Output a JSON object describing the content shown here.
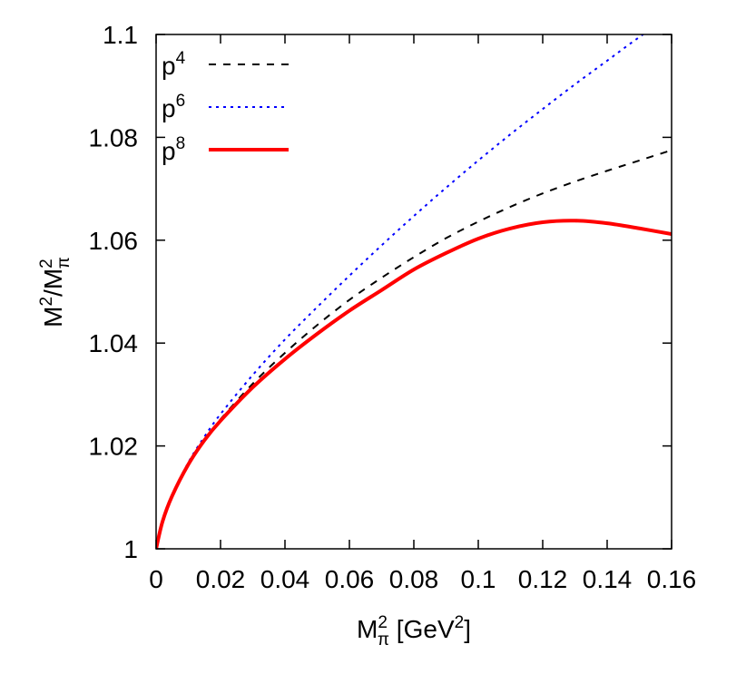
{
  "chart_data": {
    "type": "line",
    "xlabel": {
      "base": "M",
      "sub": "π",
      "sup": "2",
      "suffix_open": " [GeV",
      "suffix_sup": "2",
      "suffix_close": "]"
    },
    "ylabel": {
      "base1": "M",
      "sup1": "2",
      "slash": "/M",
      "sub2": "π",
      "sup2": "2"
    },
    "xlim": [
      0,
      0.16
    ],
    "ylim": [
      1,
      1.1
    ],
    "x_ticks": [
      0,
      0.02,
      0.04,
      0.06,
      0.08,
      0.1,
      0.12,
      0.14,
      0.16
    ],
    "x_tick_labels": [
      "0",
      "0.02",
      "0.04",
      "0.06",
      "0.08",
      "0.1",
      "0.12",
      "0.14",
      "0.16"
    ],
    "y_ticks": [
      1,
      1.02,
      1.04,
      1.06,
      1.08,
      1.1
    ],
    "y_tick_labels": [
      "1",
      "1.02",
      "1.04",
      "1.06",
      "1.08",
      "1.1"
    ],
    "grid": false,
    "legend_position": "top-left",
    "series": [
      {
        "name": "p4",
        "name_base": "p",
        "name_sup": "4",
        "color": "#000000",
        "style": "dashed",
        "x": [
          0,
          0.002,
          0.005,
          0.01,
          0.015,
          0.02,
          0.03,
          0.04,
          0.05,
          0.06,
          0.07,
          0.08,
          0.09,
          0.1,
          0.11,
          0.12,
          0.13,
          0.14,
          0.15,
          0.16
        ],
        "y": [
          1.0,
          1.0053,
          1.0103,
          1.0165,
          1.0212,
          1.0252,
          1.0321,
          1.0381,
          1.0435,
          1.0484,
          1.0527,
          1.0567,
          1.0604,
          1.0636,
          1.0665,
          1.0691,
          1.0714,
          1.0735,
          1.0755,
          1.0775
        ]
      },
      {
        "name": "p6",
        "name_base": "p",
        "name_sup": "6",
        "color": "#0000ff",
        "style": "dotted",
        "x": [
          0,
          0.002,
          0.005,
          0.01,
          0.015,
          0.02,
          0.03,
          0.04,
          0.05,
          0.06,
          0.07,
          0.08,
          0.09,
          0.1,
          0.11,
          0.12,
          0.13,
          0.14,
          0.15,
          0.16
        ],
        "y": [
          1.0,
          1.0053,
          1.0104,
          1.0168,
          1.0218,
          1.0262,
          1.0338,
          1.0407,
          1.047,
          1.0531,
          1.059,
          1.0647,
          1.0702,
          1.0755,
          1.0806,
          1.0855,
          1.0903,
          1.0949,
          1.0995,
          1.1038
        ]
      },
      {
        "name": "p8",
        "name_base": "p",
        "name_sup": "8",
        "color": "#ff0000",
        "style": "solid",
        "x": [
          0,
          0.002,
          0.005,
          0.01,
          0.015,
          0.02,
          0.03,
          0.04,
          0.05,
          0.06,
          0.07,
          0.08,
          0.09,
          0.1,
          0.11,
          0.12,
          0.13,
          0.14,
          0.15,
          0.16
        ],
        "y": [
          1.0,
          1.0053,
          1.0103,
          1.0164,
          1.0211,
          1.0249,
          1.0314,
          1.0369,
          1.0418,
          1.0463,
          1.0503,
          1.0543,
          1.0575,
          1.0603,
          1.0623,
          1.0635,
          1.0638,
          1.0633,
          1.0623,
          1.0612
        ]
      }
    ]
  }
}
